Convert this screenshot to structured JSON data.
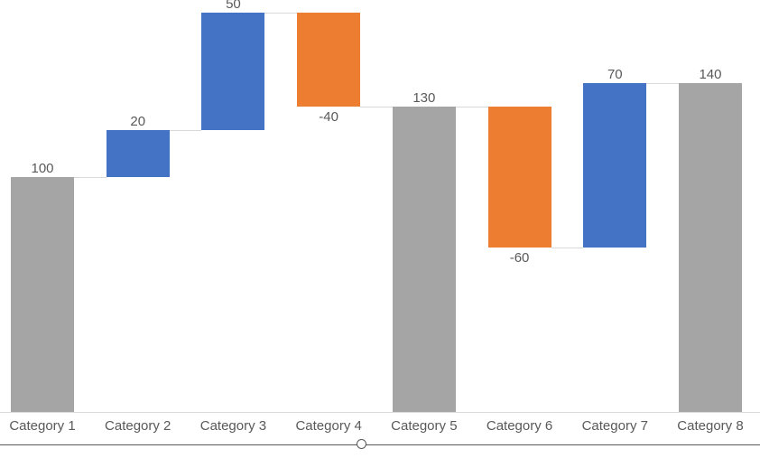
{
  "chart_data": {
    "type": "bar",
    "variant": "waterfall",
    "title": "",
    "xlabel": "",
    "ylabel": "",
    "categories": [
      "Category 1",
      "Category 2",
      "Category 3",
      "Category 4",
      "Category 5",
      "Category 6",
      "Category 7",
      "Category 8"
    ],
    "points": [
      {
        "category": "Category 1",
        "value": 100,
        "label": "100",
        "role": "total"
      },
      {
        "category": "Category 2",
        "value": 20,
        "label": "20",
        "role": "increase"
      },
      {
        "category": "Category 3",
        "value": 50,
        "label": "50",
        "role": "increase"
      },
      {
        "category": "Category 4",
        "value": -40,
        "label": "-40",
        "role": "decrease"
      },
      {
        "category": "Category 5",
        "value": 130,
        "label": "130",
        "role": "total"
      },
      {
        "category": "Category 6",
        "value": -60,
        "label": "-60",
        "role": "decrease"
      },
      {
        "category": "Category 7",
        "value": 70,
        "label": "70",
        "role": "increase"
      },
      {
        "category": "Category 8",
        "value": 140,
        "label": "140",
        "role": "total"
      }
    ],
    "cumulative": [
      100,
      120,
      170,
      130,
      130,
      70,
      140,
      140
    ],
    "ylim": [
      0,
      175
    ],
    "grid": false,
    "legend": false,
    "connectors": true,
    "colors": {
      "increase": "#4472C4",
      "decrease": "#ED7D31",
      "total": "#A5A5A5"
    },
    "connector_color": "#D9D9D9",
    "axis_line_color": "#D9D9D9",
    "label_color": "#595959",
    "background": "#FFFFFF"
  },
  "selection": {
    "border_color": "#595959",
    "handle_fill": "#FFFFFF",
    "handle_position": "bottom-center"
  }
}
